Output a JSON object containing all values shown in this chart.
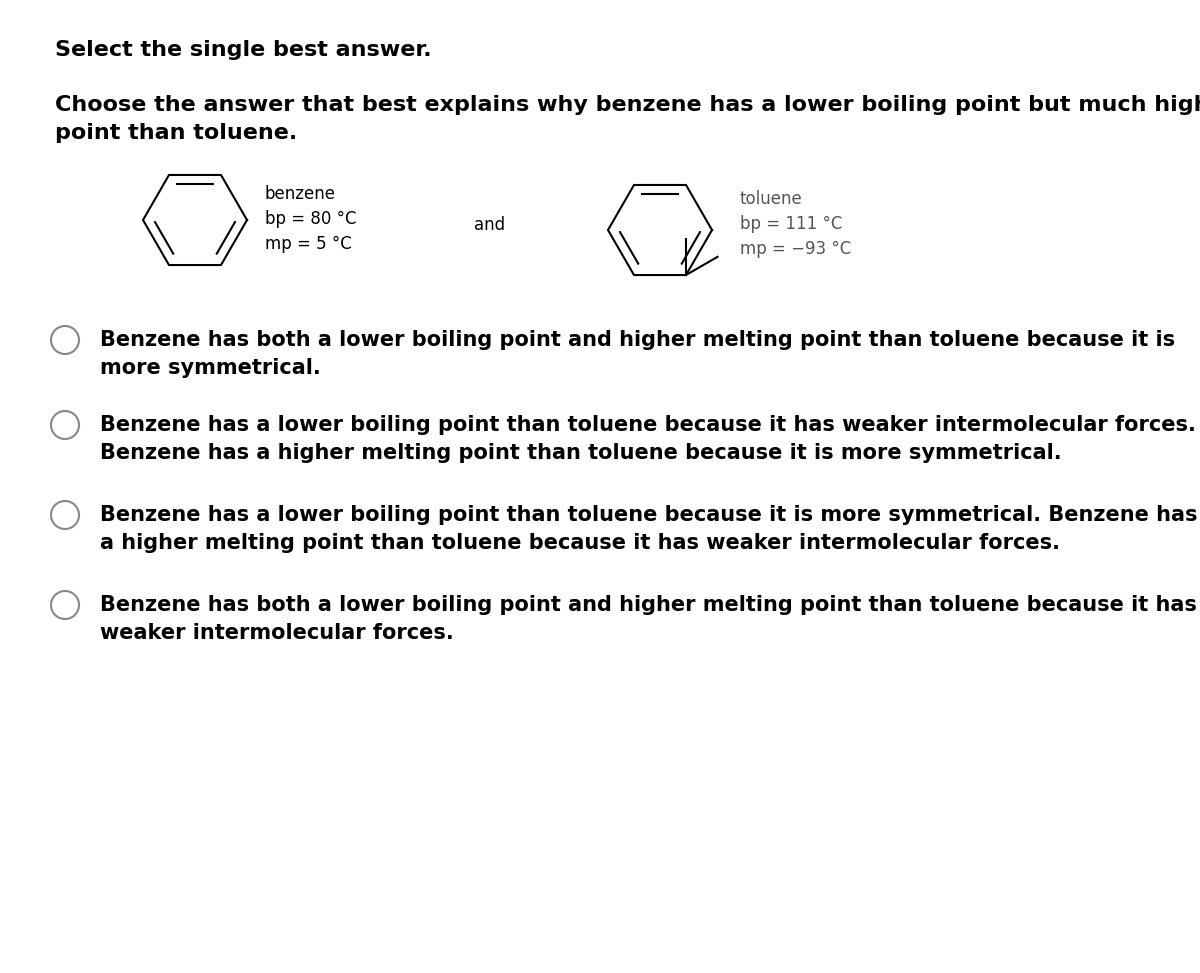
{
  "title_line1": "Select the single best answer.",
  "question": "Choose the answer that best explains why benzene has a lower boiling point but much higher melting\npoint than toluene.",
  "benzene_label": "benzene",
  "benzene_bp": "bp = 80 °C",
  "benzene_mp": "mp = 5 °C",
  "toluene_label": "toluene",
  "toluene_bp": "bp = 111 °C",
  "toluene_mp": "mp = −93 °C",
  "and_text": "and",
  "options": [
    "Benzene has both a lower boiling point and higher melting point than toluene because it is\nmore symmetrical.",
    "Benzene has a lower boiling point than toluene because it has weaker intermolecular forces.\nBenzene has a higher melting point than toluene because it is more symmetrical.",
    "Benzene has a lower boiling point than toluene because it is more symmetrical. Benzene has\na higher melting point than toluene because it has weaker intermolecular forces.",
    "Benzene has both a lower boiling point and higher melting point than toluene because it has\nweaker intermolecular forces."
  ],
  "bg_color": "#ffffff",
  "text_color": "#000000",
  "label_color_benzene": "#000000",
  "label_color_toluene": "#555555",
  "font_size_title": 16,
  "font_size_question": 16,
  "font_size_option": 15,
  "font_size_label": 12,
  "font_size_and": 12
}
